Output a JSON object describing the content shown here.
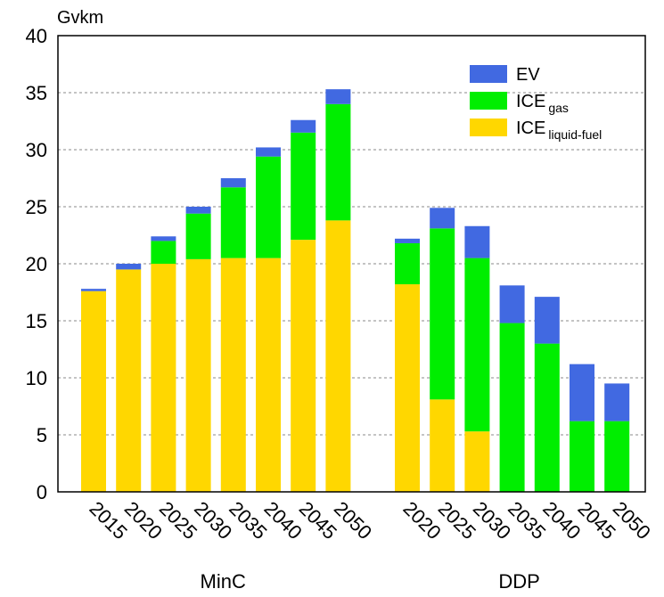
{
  "chart_data": {
    "type": "bar",
    "stacked": true,
    "ylabel": "Gvkm",
    "ylim": [
      0,
      40
    ],
    "yticks": [
      0,
      5,
      10,
      15,
      20,
      25,
      30,
      35,
      40
    ],
    "grid": "horizontal dashed",
    "legend_position": "top-right",
    "legend": [
      {
        "key": "EV",
        "label": "EV",
        "sub": "",
        "color": "#4169E1"
      },
      {
        "key": "ICE_gas",
        "label": "ICE",
        "sub": "gas",
        "color": "#00EE00"
      },
      {
        "key": "ICE_liquid",
        "label": "ICE",
        "sub": "liquid-fuel",
        "color": "#FFD700"
      }
    ],
    "series": [
      {
        "name": "ICE liquid-fuel",
        "key": "ICE_liquid",
        "color": "#FFD700"
      },
      {
        "name": "ICE gas",
        "key": "ICE_gas",
        "color": "#00EE00"
      },
      {
        "name": "EV",
        "key": "EV",
        "color": "#4169E1"
      }
    ],
    "groups": [
      {
        "name": "MinC",
        "categories": [
          "2015",
          "2020",
          "2025",
          "2030",
          "2035",
          "2040",
          "2045",
          "2050"
        ],
        "values": {
          "ICE_liquid": [
            17.6,
            19.5,
            20.0,
            20.4,
            20.5,
            20.5,
            22.1,
            23.8
          ],
          "ICE_gas": [
            0.0,
            0.0,
            2.0,
            4.0,
            6.2,
            8.9,
            9.4,
            10.2
          ],
          "EV": [
            0.2,
            0.5,
            0.4,
            0.6,
            0.8,
            0.8,
            1.1,
            1.3
          ]
        }
      },
      {
        "name": "DDP",
        "categories": [
          "2020",
          "2025",
          "2030",
          "2035",
          "2040",
          "2045",
          "2050"
        ],
        "values": {
          "ICE_liquid": [
            18.2,
            8.1,
            5.3,
            0.0,
            0.0,
            0.0,
            0.0
          ],
          "ICE_gas": [
            3.6,
            15.0,
            15.2,
            14.8,
            13.0,
            6.2,
            6.2
          ],
          "EV": [
            0.4,
            1.8,
            2.8,
            3.3,
            4.1,
            5.0,
            3.3
          ]
        }
      }
    ]
  }
}
